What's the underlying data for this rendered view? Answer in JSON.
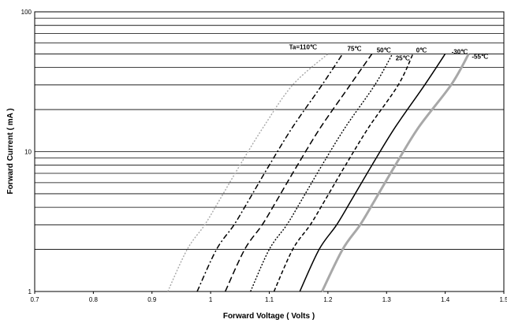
{
  "chart_data": {
    "type": "line",
    "title": "",
    "xlabel": "Forward Voltage ( Volts )",
    "ylabel": "Forward Current ( mA )",
    "xlim": [
      0.7,
      1.5
    ],
    "ylim": [
      1,
      100
    ],
    "y_scale": "log",
    "grid": "horizontal",
    "x_ticks": [
      "0.7",
      "0.8",
      "0.9",
      "1",
      "1.1",
      "1.2",
      "1.3",
      "1.4",
      "1.5"
    ],
    "y_ticks": [
      "1",
      "10",
      "100"
    ],
    "colors": {
      "gray": "#a8a8a8",
      "black": "#000000"
    },
    "series": [
      {
        "name": "Ta=110℃",
        "color": "#a8a8a8",
        "dash": "dotted",
        "x": [
          0.927,
          0.96,
          0.99,
          1.015,
          1.05,
          1.09,
          1.14,
          1.2
        ],
        "y": [
          1,
          2,
          3,
          4.5,
          8,
          15,
          30,
          50
        ]
      },
      {
        "name": "75℃",
        "color": "#000000",
        "dash": "dashdot",
        "x": [
          0.977,
          1.01,
          1.04,
          1.065,
          1.1,
          1.14,
          1.19,
          1.225
        ],
        "y": [
          1,
          2,
          3,
          4.5,
          8,
          15,
          30,
          50
        ]
      },
      {
        "name": "50℃",
        "color": "#000000",
        "dash": "longdash",
        "x": [
          1.025,
          1.058,
          1.088,
          1.113,
          1.148,
          1.188,
          1.238,
          1.275
        ],
        "y": [
          1,
          2,
          3,
          4.5,
          8,
          15,
          30,
          50
        ]
      },
      {
        "name": "25℃",
        "color": "#000000",
        "dash": "dotted",
        "x": [
          1.068,
          1.1,
          1.13,
          1.155,
          1.19,
          1.23,
          1.28,
          1.31
        ],
        "y": [
          1,
          2,
          3,
          4.5,
          8,
          15,
          30,
          50
        ]
      },
      {
        "name": "0℃",
        "color": "#000000",
        "dash": "dash",
        "x": [
          1.108,
          1.14,
          1.17,
          1.195,
          1.23,
          1.27,
          1.32,
          1.345
        ],
        "y": [
          1,
          2,
          3,
          4.5,
          8,
          15,
          30,
          50
        ]
      },
      {
        "name": "-30℃",
        "color": "#000000",
        "dash": "solid",
        "x": [
          1.152,
          1.185,
          1.215,
          1.24,
          1.275,
          1.315,
          1.365,
          1.4
        ],
        "y": [
          1,
          2,
          3,
          4.5,
          8,
          15,
          30,
          50
        ]
      },
      {
        "name": "-55℃",
        "color": "#a8a8a8",
        "dash": "solid-thick",
        "x": [
          1.19,
          1.225,
          1.255,
          1.28,
          1.315,
          1.355,
          1.41,
          1.44
        ],
        "y": [
          1,
          2,
          3,
          4.5,
          8,
          15,
          30,
          50
        ]
      }
    ]
  }
}
